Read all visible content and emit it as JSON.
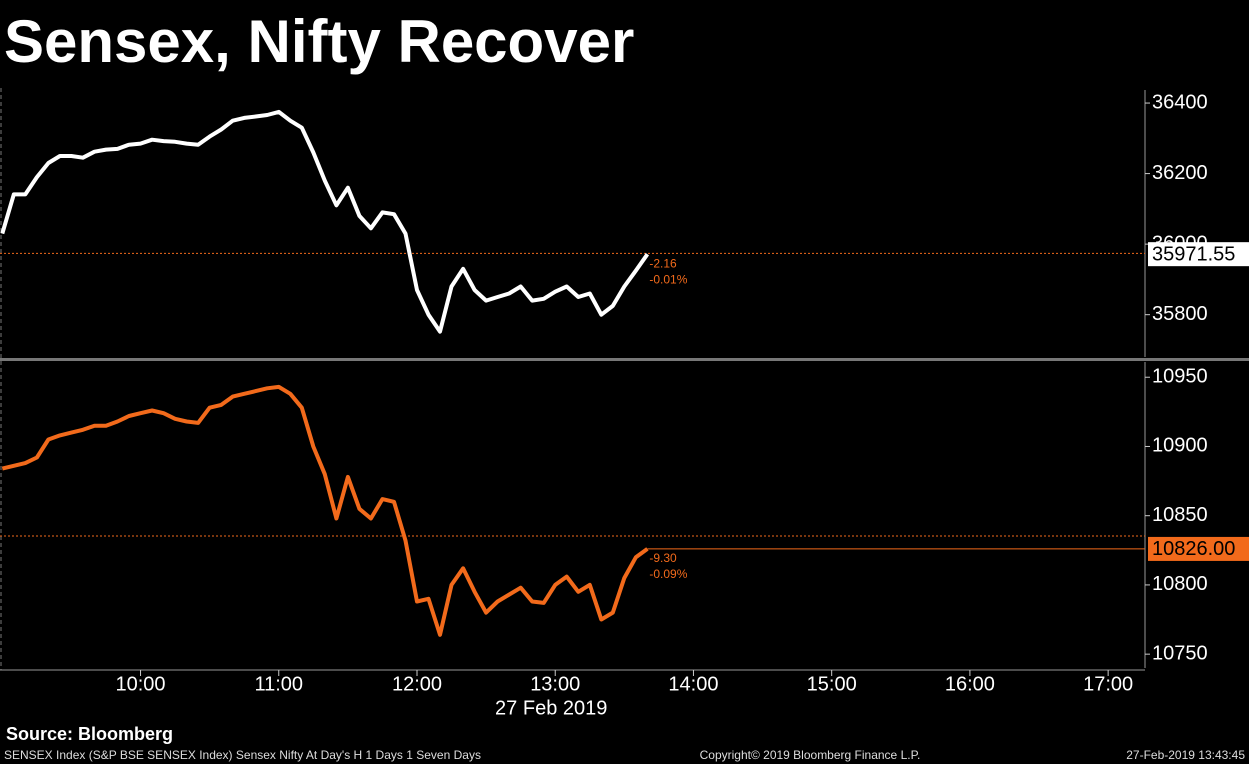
{
  "title": "Sensex, Nifty Recover",
  "source": "Source: Bloomberg",
  "footer_left": "SENSEX Index (S&P BSE SENSEX Index) Sensex Nifty At Day's H 1 Days 1 Seven Days",
  "footer_center": "Copyright© 2019 Bloomberg Finance L.P.",
  "footer_right": "27-Feb-2019 13:43:45",
  "chart_data": [
    {
      "type": "line",
      "x": [
        540,
        545,
        550,
        555,
        560,
        565,
        570,
        575,
        580,
        585,
        590,
        595,
        600,
        605,
        610,
        615,
        620,
        625,
        630,
        635,
        640,
        645,
        650,
        655,
        660,
        665,
        670,
        675,
        680,
        685,
        690,
        695,
        700,
        705,
        710,
        715,
        720,
        725,
        730,
        735,
        740,
        745,
        750,
        755,
        760,
        765,
        770,
        775,
        780,
        785,
        790,
        795,
        800,
        805,
        810,
        815,
        820
      ],
      "xlim": [
        539,
        1036
      ],
      "series": [
        {
          "color": "#ffffff",
          "values": [
            36030,
            36141,
            36141,
            36190,
            36230,
            36250,
            36250,
            36245,
            36262,
            36268,
            36270,
            36282,
            36285,
            36296,
            36292,
            36290,
            36285,
            36282,
            36305,
            36325,
            36350,
            36358,
            36362,
            36366,
            36375,
            36350,
            36330,
            36260,
            36180,
            36110,
            36160,
            36080,
            36045,
            36090,
            36085,
            36030,
            35870,
            35800,
            35752,
            35880,
            35930,
            35870,
            35840,
            35850,
            35860,
            35880,
            35840,
            35845,
            35865,
            35880,
            35850,
            35860,
            35800,
            35825,
            35880,
            35925,
            35971.55
          ]
        }
      ],
      "ylim": [
        35680,
        36437
      ],
      "yticks": [
        35800,
        36000,
        36200,
        36400
      ],
      "reference_line": 35973.71,
      "change_labels": [
        "-2.16",
        "-0.01%"
      ]
    },
    {
      "type": "line",
      "x": [
        540,
        545,
        550,
        555,
        560,
        565,
        570,
        575,
        580,
        585,
        590,
        595,
        600,
        605,
        610,
        615,
        620,
        625,
        630,
        635,
        640,
        645,
        650,
        655,
        660,
        665,
        670,
        675,
        680,
        685,
        690,
        695,
        700,
        705,
        710,
        715,
        720,
        725,
        730,
        735,
        740,
        745,
        750,
        755,
        760,
        765,
        770,
        775,
        780,
        785,
        790,
        795,
        800,
        805,
        810,
        815,
        820
      ],
      "xlim": [
        539,
        1036
      ],
      "xticks": [
        {
          "value": 600,
          "label": "10:00"
        },
        {
          "value": 660,
          "label": "11:00"
        },
        {
          "value": 720,
          "label": "12:00"
        },
        {
          "value": 780,
          "label": "13:00"
        },
        {
          "value": 840,
          "label": "14:00"
        },
        {
          "value": 900,
          "label": "15:00"
        },
        {
          "value": 960,
          "label": "16:00"
        },
        {
          "value": 1020,
          "label": "17:00"
        }
      ],
      "x_label": "27 Feb 2019",
      "series": [
        {
          "color": "#f26a1b",
          "values": [
            10884,
            10886,
            10888,
            10892,
            10905,
            10908,
            10910,
            10912,
            10915,
            10915,
            10918,
            10922,
            10924,
            10926,
            10924,
            10920,
            10918,
            10917,
            10928,
            10930,
            10936,
            10938,
            10940,
            10942,
            10943,
            10938,
            10928,
            10900,
            10880,
            10848,
            10878,
            10855,
            10848,
            10862,
            10860,
            10832,
            10788,
            10790,
            10764,
            10800,
            10812,
            10795,
            10780,
            10788,
            10793,
            10798,
            10788,
            10787,
            10800,
            10806,
            10795,
            10800,
            10775,
            10780,
            10805,
            10820,
            10826
          ]
        }
      ],
      "ylim": [
        10740,
        10961
      ],
      "yticks": [
        10750,
        10800,
        10850,
        10900,
        10950
      ],
      "reference_line": 10835.3,
      "last_label": "10826.00",
      "change_labels": [
        "-9.30",
        "-0.09%"
      ]
    }
  ]
}
